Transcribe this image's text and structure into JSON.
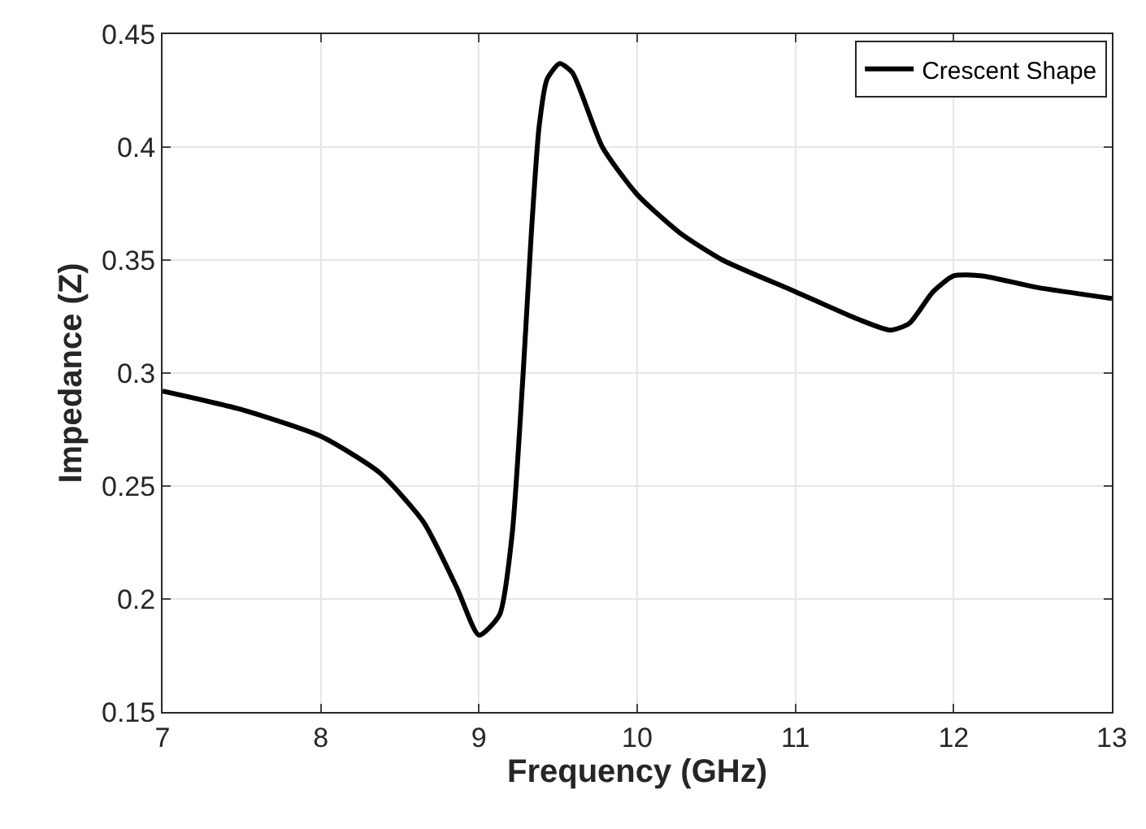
{
  "chart_data": {
    "type": "line",
    "xlabel": "Frequency (GHz)",
    "ylabel": "Impedance (Z)",
    "xlim": [
      7,
      13
    ],
    "xticks": [
      7,
      8,
      9,
      10,
      11,
      12,
      13
    ],
    "ylim": [
      0.15,
      0.45
    ],
    "yticks": [
      0.15,
      0.2,
      0.25,
      0.3,
      0.35,
      0.4,
      0.45
    ],
    "grid": true,
    "legend": "top right",
    "line_style": "solid",
    "marker": "none",
    "series": [
      {
        "name": "Crescent Shape",
        "color": "#000000",
        "x": [
          7.0,
          7.49,
          8.0,
          8.37,
          8.65,
          8.86,
          9.0,
          9.13,
          9.21,
          9.28,
          9.33,
          9.38,
          9.43,
          9.51,
          9.59,
          9.78,
          10.0,
          10.27,
          10.54,
          11.0,
          11.39,
          11.6,
          11.72,
          11.87,
          12.0,
          12.18,
          12.52,
          13.0
        ],
        "values": [
          0.292,
          0.284,
          0.272,
          0.256,
          0.234,
          0.205,
          0.184,
          0.193,
          0.229,
          0.301,
          0.361,
          0.409,
          0.43,
          0.437,
          0.433,
          0.4,
          0.379,
          0.362,
          0.35,
          0.336,
          0.324,
          0.319,
          0.322,
          0.336,
          0.343,
          0.343,
          0.338,
          0.333
        ]
      }
    ]
  }
}
